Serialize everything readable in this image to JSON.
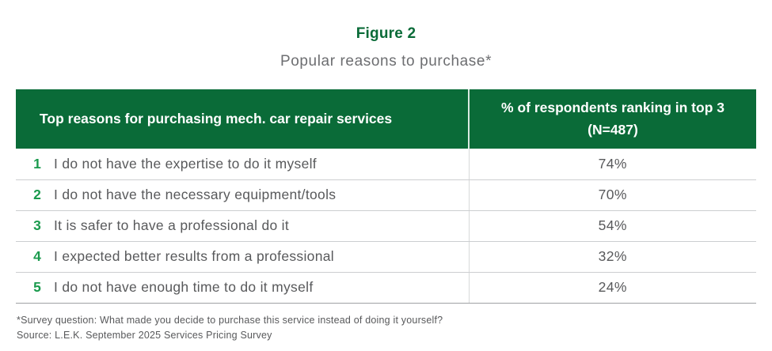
{
  "figure": {
    "label": "Figure 2",
    "title": "Popular reasons to purchase*"
  },
  "table_header": {
    "col_reasons": "Top reasons for purchasing mech. car repair services",
    "col_pct_line1": "% of respondents ranking in top 3",
    "col_pct_line2": "(N=487)"
  },
  "chart_data": {
    "type": "table",
    "title": "Popular reasons to purchase*",
    "figure_label": "Figure 2",
    "columns": [
      "Top reasons for purchasing mech. car repair services",
      "% of respondents ranking in top 3 (N=487)"
    ],
    "n": 487,
    "rows": [
      {
        "rank": "1",
        "reason": "I do not have the expertise to do it myself",
        "value": "74%"
      },
      {
        "rank": "2",
        "reason": "I do not have the necessary equipment/tools",
        "value": "70%"
      },
      {
        "rank": "3",
        "reason": "It is safer to have a professional do it",
        "value": "54%"
      },
      {
        "rank": "4",
        "reason": "I expected better results from a professional",
        "value": "32%"
      },
      {
        "rank": "5",
        "reason": "I do not have enough time to do it myself",
        "value": "24%"
      }
    ],
    "values_numeric": [
      74,
      70,
      54,
      32,
      24
    ]
  },
  "footnotes": {
    "survey_question": "*Survey question: What made you decide to purchase this service instead of doing it yourself?",
    "source": "Source: L.E.K. September 2025 Services Pricing Survey"
  },
  "colors": {
    "header_green": "#0a6b38",
    "rank_green": "#1a9a4d",
    "body_text_gray": "#58595b",
    "subtitle_gray": "#6d6e71",
    "divider_gray": "#ccced0",
    "bottom_border_gray": "#9fa1a4"
  }
}
